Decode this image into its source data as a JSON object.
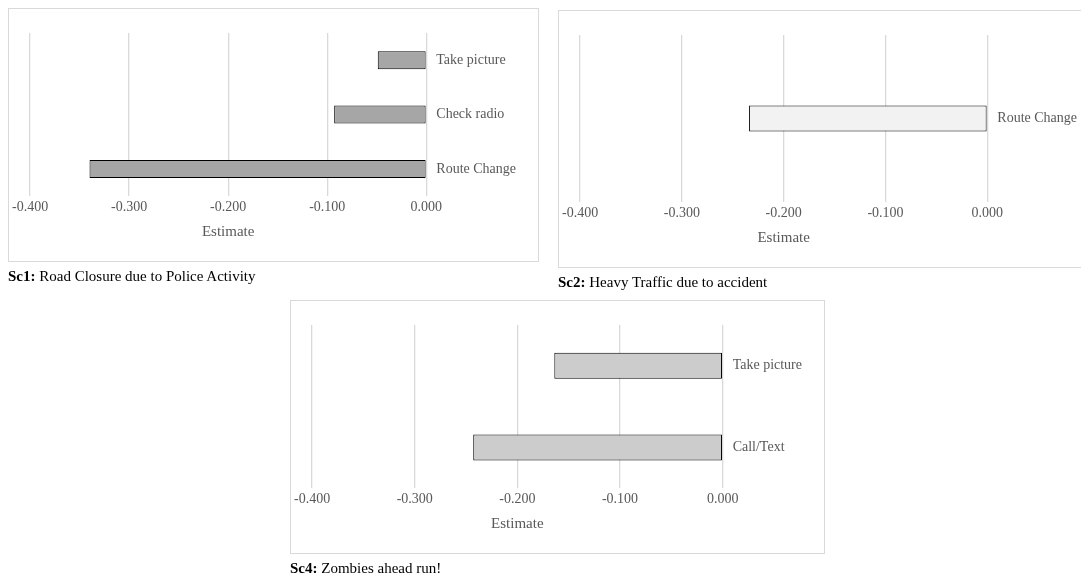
{
  "chart_data": [
    {
      "type": "bar",
      "orientation": "horizontal",
      "title": "Sc1: Road Closure due to Police Activity",
      "xlabel": "Estimate",
      "categories": [
        "Take picture",
        "Check radio",
        "Route Change"
      ],
      "values": [
        -0.049,
        -0.093,
        -0.34
      ],
      "color": "#a6a6a6",
      "xlim": [
        -0.4,
        0
      ],
      "xticks": [
        {
          "value": -0.4,
          "label": "-0.400"
        },
        {
          "value": -0.3,
          "label": "-0.300"
        },
        {
          "value": -0.2,
          "label": "-0.200"
        },
        {
          "value": -0.1,
          "label": "-0.100"
        },
        {
          "value": 0,
          "label": "0.000"
        }
      ],
      "grid": "x",
      "legend": false
    },
    {
      "type": "bar",
      "orientation": "horizontal",
      "title": "Sc2: Heavy Traffic due to accident",
      "xlabel": "Estimate",
      "categories": [
        "Route Change"
      ],
      "values": [
        -0.234
      ],
      "color": "#f2f2f2",
      "xlim": [
        -0.4,
        0
      ],
      "xticks": [
        {
          "value": -0.4,
          "label": "-0.400"
        },
        {
          "value": -0.3,
          "label": "-0.300"
        },
        {
          "value": -0.2,
          "label": "-0.200"
        },
        {
          "value": -0.1,
          "label": "-0.100"
        },
        {
          "value": 0,
          "label": "0.000"
        }
      ],
      "grid": "x",
      "legend": false
    },
    {
      "type": "bar",
      "orientation": "horizontal",
      "title": "Sc4: Zombies ahead run!",
      "xlabel": "Estimate",
      "categories": [
        "Take picture",
        "Call/Text"
      ],
      "values": [
        -0.164,
        -0.243
      ],
      "color": "#cccccc",
      "xlim": [
        -0.4,
        0
      ],
      "xticks": [
        {
          "value": -0.4,
          "label": "-0.400"
        },
        {
          "value": -0.3,
          "label": "-0.300"
        },
        {
          "value": -0.2,
          "label": "-0.200"
        },
        {
          "value": -0.1,
          "label": "-0.100"
        },
        {
          "value": 0,
          "label": "0.000"
        }
      ],
      "grid": "x",
      "legend": false
    }
  ]
}
